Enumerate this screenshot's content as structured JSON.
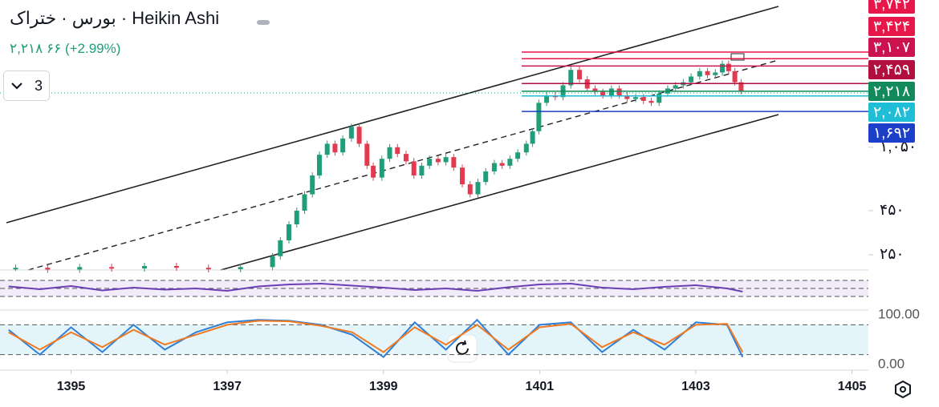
{
  "header": {
    "title": "بورس · ختراک · Heikin Ashi",
    "quote": "۲,۲۱۸ ۶۶ (+2.99%)",
    "interval": "3"
  },
  "chart_data": [
    {
      "type": "candlestick",
      "log_scale": true,
      "up_color": "#1f9e7a",
      "down_color": "#e53950",
      "x": [
        1394.29,
        1394.7,
        1395.11,
        1395.52,
        1395.94,
        1396.35,
        1396.76,
        1397.17,
        1397.58,
        1397.68,
        1397.79,
        1397.89,
        1397.99,
        1398.09,
        1398.18,
        1398.28,
        1398.38,
        1398.48,
        1398.59,
        1398.69,
        1398.79,
        1398.87,
        1398.98,
        1399.08,
        1399.18,
        1399.29,
        1399.39,
        1399.49,
        1399.59,
        1399.7,
        1399.8,
        1399.9,
        1400.01,
        1400.11,
        1400.21,
        1400.31,
        1400.42,
        1400.52,
        1400.62,
        1400.72,
        1400.83,
        1400.91,
        1400.99,
        1401.09,
        1401.2,
        1401.3,
        1401.4,
        1401.51,
        1401.61,
        1401.71,
        1401.81,
        1401.92,
        1402.02,
        1402.12,
        1402.23,
        1402.33,
        1402.43,
        1402.53,
        1402.64,
        1402.74,
        1402.84,
        1402.94,
        1403.05,
        1403.15,
        1403.25,
        1403.34,
        1403.42,
        1403.5,
        1403.58
      ],
      "values": [
        210,
        205,
        212,
        208,
        215,
        210,
        206,
        212,
        245,
        303,
        375,
        450,
        560,
        720,
        950,
        1100,
        980,
        1180,
        1380,
        1100,
        820,
        700,
        900,
        1050,
        960,
        870,
        720,
        820,
        900,
        860,
        920,
        800,
        640,
        560,
        660,
        760,
        850,
        820,
        900,
        980,
        1100,
        1300,
        1900,
        2100,
        2050,
        2400,
        2950,
        2600,
        2300,
        2200,
        2100,
        2300,
        2100,
        2000,
        2050,
        1950,
        1900,
        2150,
        2300,
        2400,
        2500,
        2700,
        2900,
        2750,
        2850,
        3200,
        2900,
        2500,
        2218
      ],
      "xlim": [
        1394.09,
        1405.21
      ],
      "xticks": [
        1395,
        1397,
        1399,
        1401,
        1403,
        1405
      ],
      "ylim": [
        206,
        7500
      ],
      "yticks": [
        {
          "value": 250,
          "label": "۲۵۰"
        },
        {
          "value": 450,
          "label": "۴۵۰"
        },
        {
          "value": 1050,
          "label": "۱,۰۵۰"
        }
      ],
      "price_levels": [
        {
          "value": 3742,
          "label": "۳,۷۴۲",
          "color": "#e8174a"
        },
        {
          "value": 3424,
          "label": "۳,۴۲۴",
          "color": "#e8174a"
        },
        {
          "value": 3107,
          "label": "۳,۱۰۷",
          "color": "#cc1350"
        },
        {
          "value": 2459,
          "label": "۲,۴۵۹",
          "color": "#b10f3d"
        },
        {
          "value": 2218,
          "label": "۲,۲۱۸",
          "color": "#138a5c"
        },
        {
          "value": 2082,
          "label": "۲,۰۸۲",
          "color": "#1fbdd6"
        },
        {
          "value": 1692,
          "label": "۱,۶۹۲",
          "color": "#1c3fc9"
        }
      ]
    },
    {
      "type": "line",
      "color": "#6a3fb5",
      "x": [
        1394.2,
        1394.6,
        1395.0,
        1395.4,
        1395.8,
        1396.2,
        1396.6,
        1397.0,
        1397.4,
        1397.8,
        1398.2,
        1398.6,
        1399.0,
        1399.4,
        1399.8,
        1400.2,
        1400.6,
        1401.0,
        1401.4,
        1401.8,
        1402.2,
        1402.6,
        1403.0,
        1403.4,
        1403.6
      ],
      "values": [
        55,
        48,
        56,
        45,
        52,
        47,
        50,
        44,
        55,
        60,
        62,
        57,
        52,
        46,
        50,
        44,
        53,
        60,
        62,
        52,
        48,
        54,
        58,
        50,
        42
      ],
      "ylim": [
        0,
        100
      ],
      "levels": [
        30,
        50,
        70
      ]
    },
    {
      "type": "line",
      "x": [
        1394.2,
        1394.6,
        1395.0,
        1395.4,
        1395.8,
        1396.2,
        1396.6,
        1397.0,
        1397.4,
        1397.8,
        1398.2,
        1398.6,
        1399.0,
        1399.4,
        1399.8,
        1400.2,
        1400.6,
        1401.0,
        1401.4,
        1401.8,
        1402.2,
        1402.6,
        1403.0,
        1403.4,
        1403.6
      ],
      "series": [
        {
          "color": "#2f7fd6",
          "values": [
            70,
            20,
            75,
            25,
            80,
            30,
            65,
            85,
            90,
            88,
            80,
            60,
            15,
            85,
            30,
            90,
            20,
            80,
            85,
            25,
            70,
            30,
            85,
            80,
            15
          ]
        },
        {
          "color": "#f07a22",
          "values": [
            65,
            30,
            65,
            35,
            70,
            40,
            60,
            80,
            88,
            87,
            78,
            65,
            25,
            75,
            40,
            80,
            30,
            75,
            82,
            35,
            65,
            40,
            80,
            82,
            25
          ]
        }
      ],
      "ylim": [
        0,
        100
      ],
      "yticks": [
        {
          "value": 0,
          "label": "0.00"
        },
        {
          "value": 100,
          "label": "100.00"
        }
      ],
      "levels": [
        20,
        80
      ]
    }
  ]
}
